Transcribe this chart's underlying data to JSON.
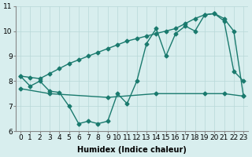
{
  "line1_x": [
    0,
    1,
    2,
    3,
    4,
    5,
    6,
    7,
    8,
    9,
    10,
    11,
    12,
    13,
    14,
    15,
    16,
    17,
    18,
    19,
    20,
    21,
    22,
    23
  ],
  "line1_y": [
    8.2,
    8.15,
    8.1,
    8.3,
    8.5,
    8.7,
    8.85,
    9.0,
    9.15,
    9.3,
    9.45,
    9.6,
    9.7,
    9.8,
    9.9,
    10.0,
    10.1,
    10.3,
    10.5,
    10.65,
    10.7,
    10.5,
    10.0,
    7.4
  ],
  "line2_x": [
    0,
    1,
    2,
    3,
    4,
    5,
    6,
    7,
    8,
    9,
    10,
    11,
    12,
    13,
    14,
    15,
    16,
    17,
    18,
    19,
    20,
    21,
    22,
    23
  ],
  "line2_y": [
    8.2,
    7.8,
    8.0,
    7.6,
    7.55,
    7.0,
    6.3,
    6.4,
    6.3,
    6.4,
    7.5,
    7.1,
    8.0,
    9.5,
    10.1,
    9.0,
    9.9,
    10.2,
    10.0,
    10.65,
    10.7,
    10.4,
    8.4,
    8.0
  ],
  "line3_x": [
    0,
    3,
    9,
    14,
    19,
    21,
    23
  ],
  "line3_y": [
    7.7,
    7.5,
    7.35,
    7.5,
    7.5,
    7.5,
    7.4
  ],
  "line_color": "#1a7a6e",
  "bg_color": "#d8eeee",
  "grid_color": "#b8d8d8",
  "xlabel": "Humidex (Indice chaleur)",
  "ylim": [
    6,
    11
  ],
  "xlim": [
    -0.5,
    23.5
  ],
  "yticks": [
    6,
    7,
    8,
    9,
    10,
    11
  ],
  "xticks": [
    0,
    1,
    2,
    3,
    4,
    5,
    6,
    7,
    8,
    9,
    10,
    11,
    12,
    13,
    14,
    15,
    16,
    17,
    18,
    19,
    20,
    21,
    22,
    23
  ],
  "marker": "D",
  "markersize": 2.5,
  "linewidth": 1.0,
  "font_size": 6.5
}
